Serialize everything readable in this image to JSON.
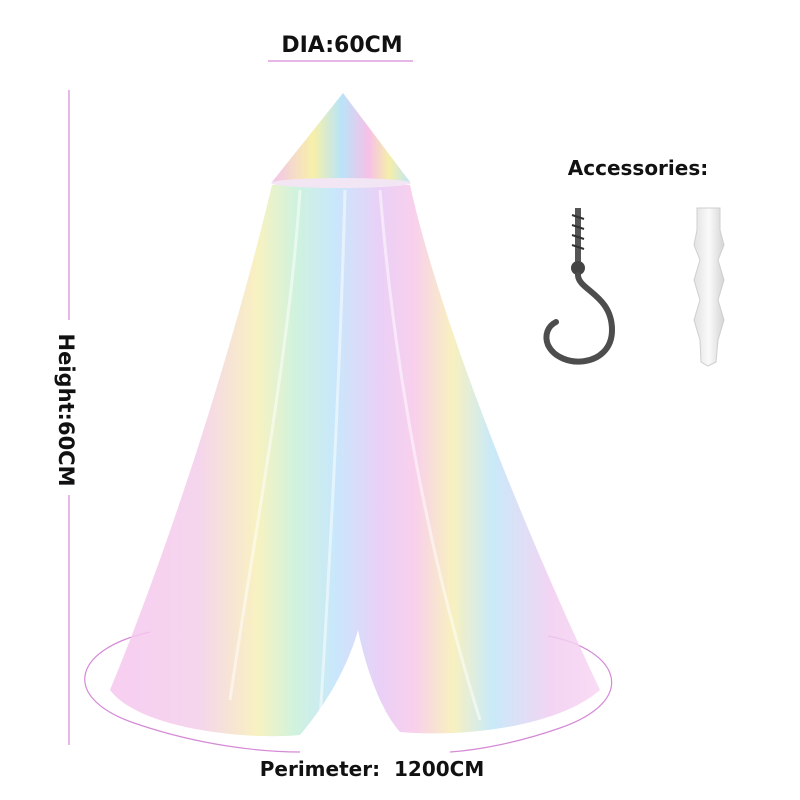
{
  "dimensions": {
    "diameter": "DIA:60CM",
    "height": "Height:60CM",
    "perimeter": "Perimeter:  1200CM"
  },
  "accessories": {
    "title": "Accessories:"
  }
}
